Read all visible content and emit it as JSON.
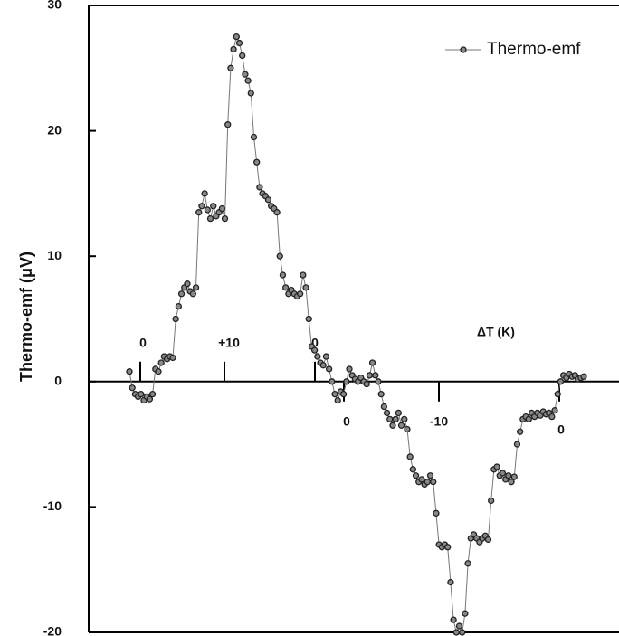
{
  "chart_data": {
    "type": "line",
    "y_label": "Thermo-emf (μV)",
    "annotations": [
      "0",
      "+10",
      "0",
      "ΔT (K)",
      "0",
      "-10",
      "0"
    ],
    "ylim": [
      -20,
      30
    ],
    "yticks": [
      -20,
      -10,
      0,
      10,
      20,
      30
    ],
    "series": [
      {
        "name": "Thermo-emf",
        "color": "#222222",
        "values": [
          0.8,
          -0.5,
          -1,
          -1.2,
          -1,
          -1.5,
          -1.2,
          -1.4,
          -1,
          1,
          0.8,
          1.5,
          2,
          1.8,
          2,
          1.9,
          5,
          6,
          7,
          7.5,
          7.8,
          7.2,
          7,
          7.5,
          13.5,
          14,
          15,
          13.7,
          13,
          14,
          13.2,
          13.5,
          13.8,
          13,
          20.5,
          25,
          26.5,
          27.5,
          27,
          26,
          24.5,
          24,
          23,
          19.5,
          17.5,
          15.5,
          15,
          14.8,
          14.5,
          14,
          13.8,
          13.5,
          10,
          8.5,
          7.5,
          7,
          7.3,
          7,
          6.8,
          7,
          8.5,
          7.5,
          5,
          2.8,
          2.5,
          2,
          1.5,
          1.3,
          2,
          1,
          0,
          -1,
          -1.5,
          -0.8,
          -1,
          0,
          1,
          0.5,
          0.2,
          0,
          0.3,
          0,
          -0.2,
          0.5,
          1.5,
          0.5,
          0,
          -1,
          -2,
          -2.5,
          -3,
          -3.5,
          -3,
          -2.5,
          -3.5,
          -3,
          -3.8,
          -6,
          -7,
          -7.5,
          -8,
          -7.8,
          -8.2,
          -8,
          -7.5,
          -8,
          -10.5,
          -13,
          -13.2,
          -13,
          -13.2,
          -16,
          -19,
          -20,
          -19.5,
          -20,
          -18.5,
          -14.5,
          -12.5,
          -12.2,
          -12.5,
          -12.8,
          -12.5,
          -12.3,
          -12.6,
          -9.5,
          -7,
          -6.8,
          -7.5,
          -7.3,
          -7.8,
          -7.5,
          -8,
          -7.6,
          -5,
          -4,
          -3,
          -2.8,
          -3,
          -2.5,
          -2.8,
          -2.5,
          -2.7,
          -2.4,
          -2.6,
          -2.5,
          -2.8,
          -2.3,
          -1,
          0,
          0.5,
          0.3,
          0.6,
          0.4,
          0.5,
          0.2,
          0.3,
          0.4
        ]
      }
    ]
  }
}
